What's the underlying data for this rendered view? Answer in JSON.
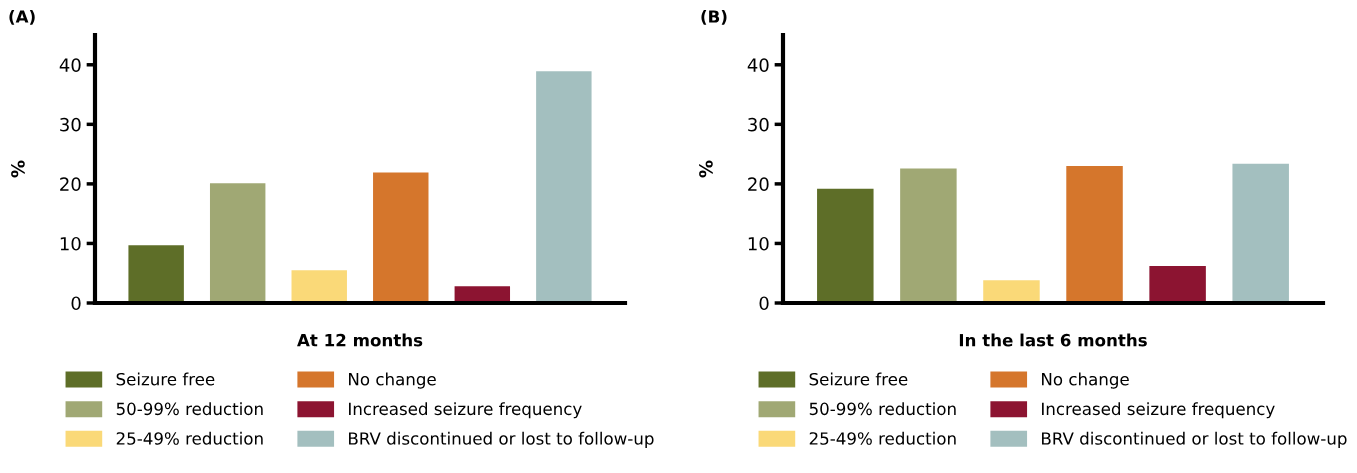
{
  "chart_data": [
    {
      "type": "bar",
      "title": "(A)",
      "xlabel": "At 12 months",
      "ylabel": "%",
      "categories": [
        null,
        null,
        null,
        null,
        null,
        null
      ],
      "ylim": [
        0,
        45
      ],
      "yticks": [
        0,
        10,
        20,
        30,
        40
      ],
      "tick_labels": "y",
      "grid": false,
      "legend": "bottom",
      "series": [
        {
          "name": "Seizure free",
          "color": "#5e6e28",
          "values": [
            9.7,
            null,
            null,
            null,
            null,
            null
          ]
        },
        {
          "name": "50-99% reduction",
          "color": "#a0a874",
          "values": [
            null,
            20.1,
            null,
            null,
            null,
            null
          ]
        },
        {
          "name": "25-49% reduction",
          "color": "#fad978",
          "values": [
            null,
            null,
            5.5,
            null,
            null,
            null
          ]
        },
        {
          "name": "No change",
          "color": "#d5762c",
          "values": [
            null,
            null,
            null,
            21.9,
            null,
            null
          ]
        },
        {
          "name": "Increased seizure frequency",
          "color": "#8c1431",
          "values": [
            null,
            null,
            null,
            null,
            2.8,
            null
          ]
        },
        {
          "name": "BRV discontinued or lost to follow-up",
          "color": "#a3bfbf",
          "values": [
            null,
            null,
            null,
            null,
            null,
            38.9
          ]
        }
      ]
    },
    {
      "type": "bar",
      "title": "(B)",
      "xlabel": "In the last 6 months",
      "ylabel": "%",
      "categories": [
        null,
        null,
        null,
        null,
        null,
        null
      ],
      "ylim": [
        0,
        45
      ],
      "yticks": [
        0,
        10,
        20,
        30,
        40
      ],
      "tick_labels": "y",
      "grid": false,
      "legend": "bottom",
      "series": [
        {
          "name": "Seizure free",
          "color": "#5e6e28",
          "values": [
            19.2,
            null,
            null,
            null,
            null,
            null
          ]
        },
        {
          "name": "50-99% reduction",
          "color": "#a0a874",
          "values": [
            null,
            22.6,
            null,
            null,
            null,
            null
          ]
        },
        {
          "name": "25-49% reduction",
          "color": "#fad978",
          "values": [
            null,
            null,
            3.8,
            null,
            null,
            null
          ]
        },
        {
          "name": "No change",
          "color": "#d5762c",
          "values": [
            null,
            null,
            null,
            23.0,
            null,
            null
          ]
        },
        {
          "name": "Increased seizure frequency",
          "color": "#8c1431",
          "values": [
            null,
            null,
            null,
            null,
            6.2,
            null
          ]
        },
        {
          "name": "BRV discontinued or lost to follow-up",
          "color": "#a3bfbf",
          "values": [
            null,
            null,
            null,
            null,
            null,
            23.4
          ]
        }
      ]
    }
  ]
}
